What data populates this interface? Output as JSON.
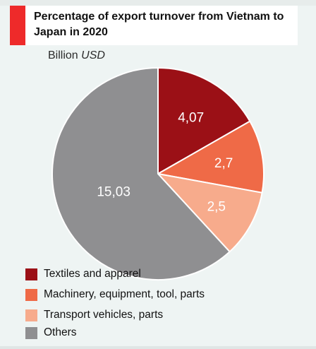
{
  "header": {
    "title": "Percentage of export turnover from Vietnam to Japan in 2020",
    "accent_color": "#ee2a2a"
  },
  "unit": {
    "part1": "Billion",
    "part2": "USD"
  },
  "chart_data": {
    "type": "pie",
    "title": "Percentage of export turnover from Vietnam to Japan in 2020",
    "unit": "Billion USD",
    "labels": [
      "Textiles and apparel",
      "Machinery, equipment, tool, parts",
      "Transport vehicles, parts",
      "Others"
    ],
    "values": [
      4.07,
      2.7,
      2.5,
      15.03
    ],
    "value_labels": [
      "4,07",
      "2,7",
      "2,5",
      "15,03"
    ],
    "colors": [
      "#9b1016",
      "#ef6a47",
      "#f7ab8c",
      "#8f8f91"
    ],
    "legend_position": "bottom-left"
  }
}
